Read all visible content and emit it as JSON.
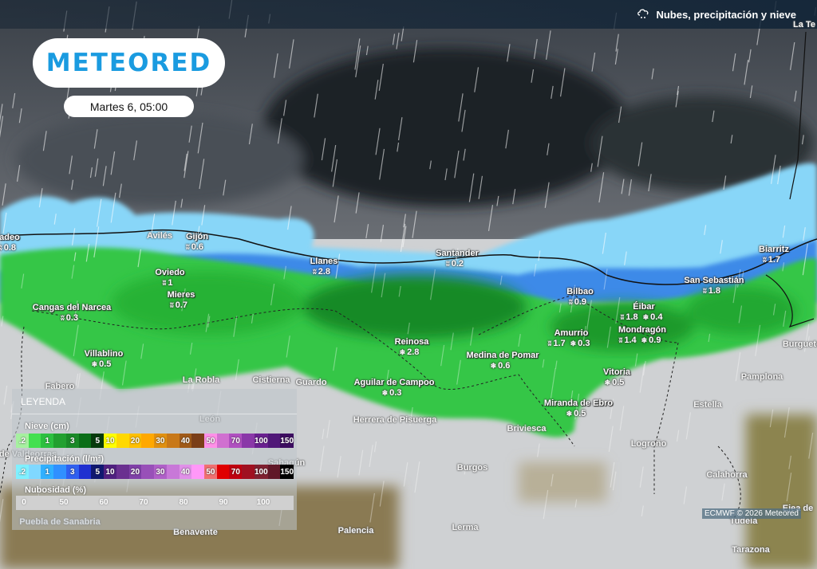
{
  "header": {
    "title": "Nubes, precipitación y nieve",
    "icon": "cloud-rain-icon"
  },
  "logo": {
    "text": "METEORED"
  },
  "date": "Martes 6, 05:00",
  "legend": {
    "title": "LEYENDA",
    "snow": {
      "label": "Nieve (cm)",
      "labels": [
        ".2",
        "",
        "1",
        "",
        "3",
        "",
        "5",
        "10",
        "",
        "20",
        "",
        "30",
        "",
        "40",
        "",
        "50",
        "",
        "70",
        "",
        "100",
        "",
        "150"
      ],
      "colors": [
        "#a6f0a0",
        "#44e050",
        "#2cc040",
        "#22a030",
        "#1a8a28",
        "#0b6e18",
        "#063a0c",
        "#ffff00",
        "#ffd800",
        "#ffc000",
        "#ffa800",
        "#e09010",
        "#c87818",
        "#a05a18",
        "#7a3e18",
        "#ff90e8",
        "#d070d0",
        "#b050c0",
        "#8a38a8",
        "#6a2090",
        "#501878",
        "#3c0c60"
      ]
    },
    "precip": {
      "label": "Precipitación (l/m²)",
      "labels": [
        ".2",
        "",
        "1",
        "",
        "3",
        "",
        "5",
        "10",
        "",
        "20",
        "",
        "30",
        "",
        "40",
        "",
        "50",
        "",
        "70",
        "",
        "100",
        "",
        "150"
      ],
      "colors": [
        "#80f0ff",
        "#80d8ff",
        "#30b0ff",
        "#3090ff",
        "#3060f0",
        "#2030d0",
        "#101870",
        "#502080",
        "#6a3090",
        "#8040a8",
        "#9850b8",
        "#b060c8",
        "#c878d8",
        "#e090e8",
        "#ff98f8",
        "#f07070",
        "#e00000",
        "#c00010",
        "#a01020",
        "#802030",
        "#601828",
        "#000000"
      ]
    },
    "cloud": {
      "label": "Nubosidad (%)",
      "labels": [
        "0",
        "50",
        "60",
        "70",
        "80",
        "90",
        "100"
      ]
    }
  },
  "cities": [
    {
      "name": "adeo",
      "rain": "0.8"
    },
    {
      "name": "Avilés"
    },
    {
      "name": "Gijón",
      "rain": "0.6"
    },
    {
      "name": "Oviedo",
      "rain": "1"
    },
    {
      "name": "Mieres",
      "rain": "0.7"
    },
    {
      "name": "Cangas del Narcea",
      "rain": "0.3"
    },
    {
      "name": "Villablino",
      "snow": "0.5"
    },
    {
      "name": "Fabero"
    },
    {
      "name": "La Robla"
    },
    {
      "name": "Cistierna"
    },
    {
      "name": "Guardo"
    },
    {
      "name": "Llanes",
      "rain": "2.8"
    },
    {
      "name": "Santander",
      "rain": "0.2"
    },
    {
      "name": "Reinosa",
      "snow": "2.8"
    },
    {
      "name": "Medina de Pomar",
      "snow": "0.6"
    },
    {
      "name": "Aguilar de Campoo",
      "snow": "0.3"
    },
    {
      "name": "Herrera de Pisuerga"
    },
    {
      "name": "Briviesca"
    },
    {
      "name": "Bilbao",
      "rain": "0.9"
    },
    {
      "name": "Éibar",
      "rain": "1.8",
      "snow": "0.4"
    },
    {
      "name": "Mondragón",
      "rain": "1.4",
      "snow": "0.9"
    },
    {
      "name": "Amurrio",
      "rain": "1.7",
      "snow": "0.3"
    },
    {
      "name": "Vitoria",
      "snow": "0.5"
    },
    {
      "name": "Miranda de Ebro",
      "snow": "0.5"
    },
    {
      "name": "San Sebastián",
      "rain": "1.8"
    },
    {
      "name": "Biarritz",
      "rain": "1.7"
    },
    {
      "name": "Burguete"
    },
    {
      "name": "Pamplona"
    },
    {
      "name": "Estella"
    },
    {
      "name": "Logroño"
    },
    {
      "name": "Calahorra"
    },
    {
      "name": "Tudela"
    },
    {
      "name": "Tarazona"
    },
    {
      "name": "Burgos"
    },
    {
      "name": "Lerma"
    },
    {
      "name": "Palencia"
    },
    {
      "name": "Benavente"
    },
    {
      "name": "Puebla de Sanabria"
    },
    {
      "name": "de Valdeorras"
    },
    {
      "name": "León"
    },
    {
      "name": "Sahagún"
    },
    {
      "name": "La Te"
    },
    {
      "name": "Ejea de"
    }
  ],
  "icons": {
    "rain": "rain-icon",
    "snow": "snow-icon"
  },
  "credit": "ECMWF © 2026 Meteored"
}
